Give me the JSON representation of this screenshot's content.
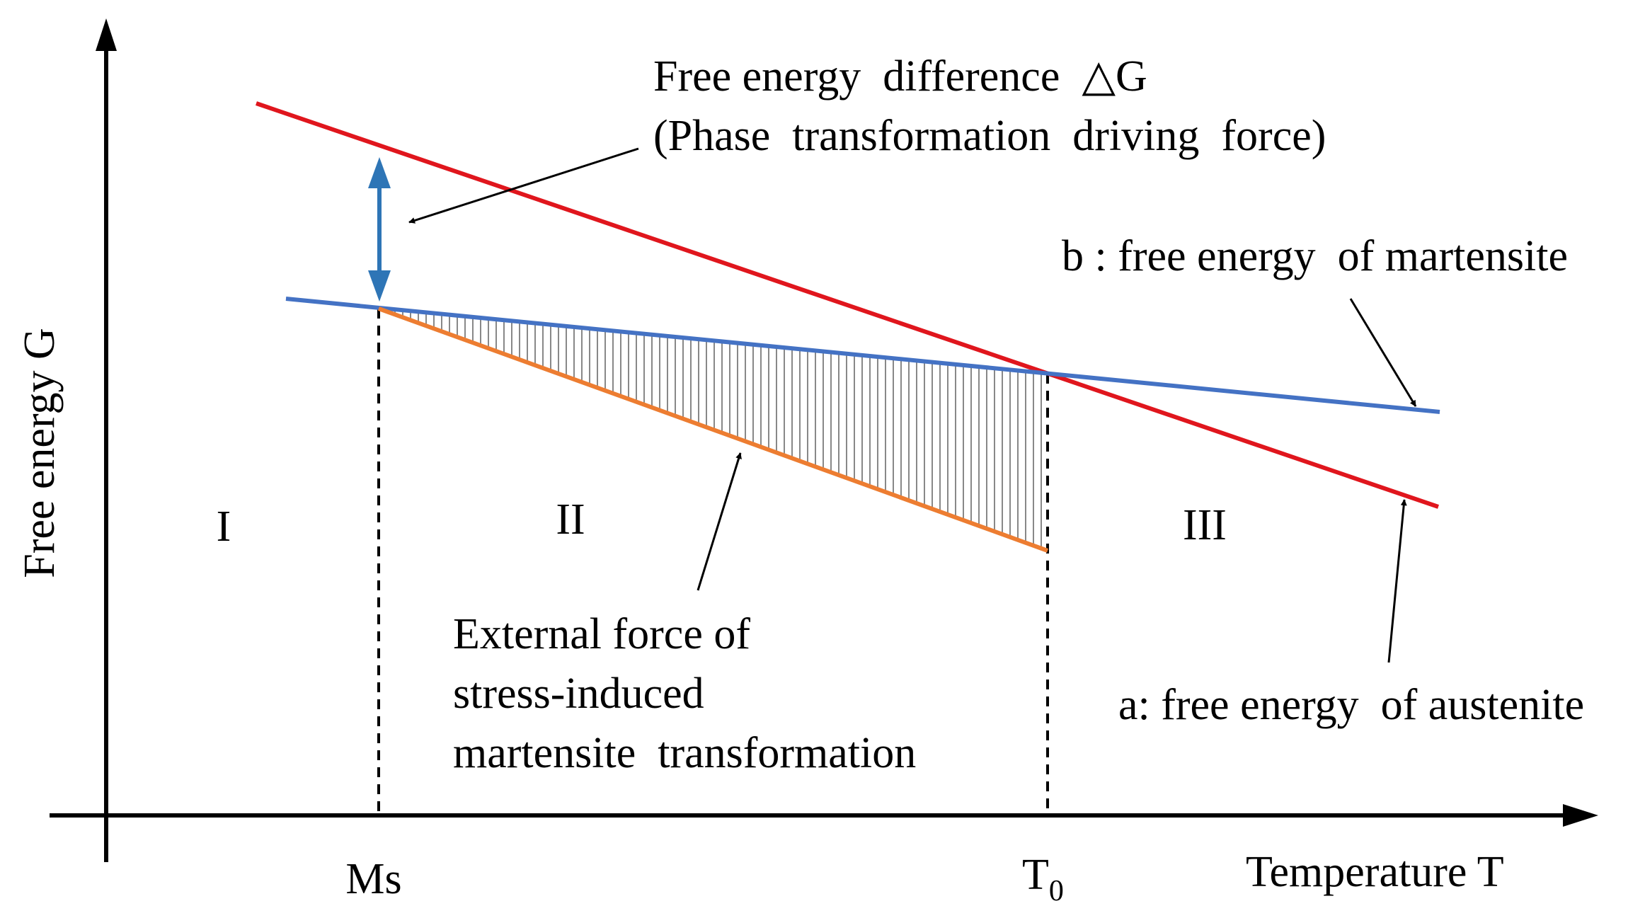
{
  "axes": {
    "y_label": "Free energy G",
    "x_label": "Temperature T"
  },
  "temperatures": {
    "ms": "Ms",
    "t0_base": "T",
    "t0_sub": "0"
  },
  "regions": {
    "region_1": "I",
    "region_2": "II",
    "region_3": "III"
  },
  "annotations": {
    "delta_g_line1": "Free energy  difference  △G",
    "delta_g_line2": "(Phase  transformation  driving  force)",
    "martensite_label": "b : free energy  of martensite",
    "austenite_label": "a: free energy  of austenite",
    "external_force_line1": "External force of",
    "external_force_line2": "stress-induced",
    "external_force_line3": "martensite  transformation"
  },
  "colors": {
    "austenite_line": "#e0161d",
    "martensite_line": "#4472c4",
    "external_force_line": "#ed7d31",
    "delta_g_arrow": "#2e75b6",
    "axis": "#000000",
    "hatch": "#888888"
  }
}
